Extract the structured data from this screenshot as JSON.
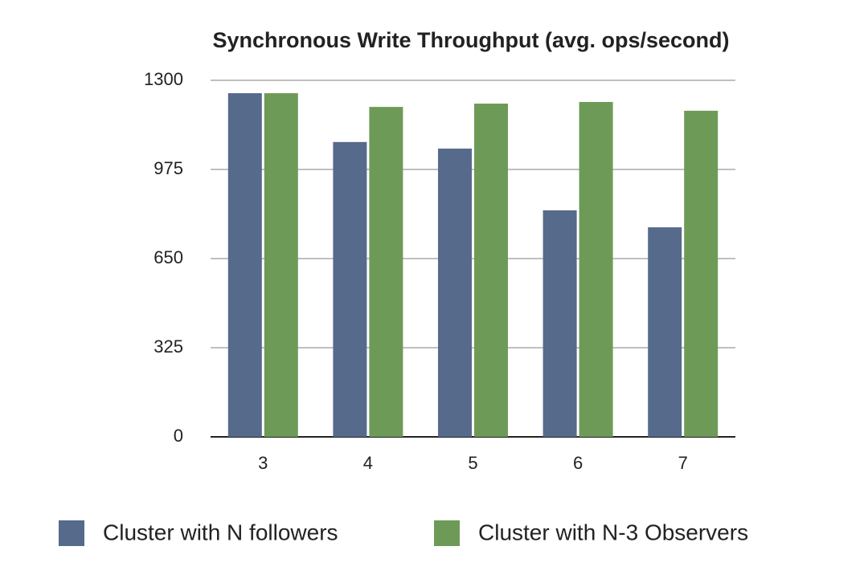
{
  "chart_data": {
    "type": "bar",
    "title": "Synchronous Write Throughput (avg. ops/second)",
    "categories": [
      "3",
      "4",
      "5",
      "6",
      "7"
    ],
    "series": [
      {
        "name": "Cluster with N followers",
        "color": "#566a8c",
        "values": [
          1253,
          1075,
          1051,
          826,
          764
        ]
      },
      {
        "name": "Cluster with N-3 Observers",
        "color": "#6e9a57",
        "values": [
          1253,
          1203,
          1215,
          1221,
          1189
        ]
      }
    ],
    "ylim": [
      0,
      1300
    ],
    "yticks": [
      0,
      325,
      650,
      975,
      1300
    ],
    "grid": true,
    "legend": "bottom"
  }
}
